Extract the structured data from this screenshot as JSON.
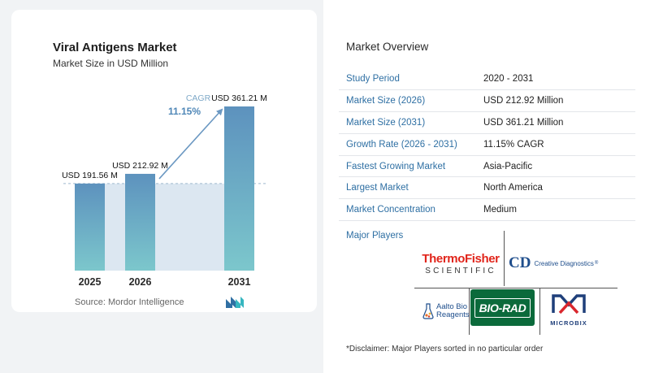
{
  "chart_data": {
    "type": "bar",
    "title": "Viral Antigens Market",
    "subtitle": "Market Size in USD Million",
    "categories": [
      "2025",
      "2026",
      "2031"
    ],
    "values": [
      191.56,
      212.92,
      361.21
    ],
    "value_labels": [
      "USD 191.56 M",
      "USD 212.92 M",
      "USD 361.21 M"
    ],
    "cagr_label": "CAGR",
    "cagr_value": "11.15%",
    "colors": {
      "bar_top": "#5d92be",
      "bar_bottom": "#7cc7cc",
      "band": "#dce7f1",
      "arrow": "#6b98c2",
      "cagr_label": "#7fa9c8",
      "cagr_value": "#4f87b7"
    },
    "grid": false
  },
  "source": "Source:  Mordor Intelligence",
  "brand_logo": "mordor-intelligence-logo",
  "overview": {
    "title": "Market Overview",
    "rows": [
      {
        "label": "Study Period",
        "value": "2020 - 2031"
      },
      {
        "label": "Market Size (2026)",
        "value": "USD 212.92 Million"
      },
      {
        "label": "Market Size (2031)",
        "value": "USD 361.21 Million"
      },
      {
        "label": "Growth Rate (2026 - 2031)",
        "value": "11.15% CAGR"
      },
      {
        "label": "Fastest Growing Market",
        "value": "Asia-Pacific"
      },
      {
        "label": "Largest Market",
        "value": "North America"
      },
      {
        "label": "Market Concentration",
        "value": "Medium"
      }
    ]
  },
  "players": {
    "title": "Major Players",
    "thermo_line1": "ThermoFisher",
    "thermo_line2": "SCIENTIFIC",
    "cd_mark": "CD",
    "cd_name": "Creative Diagnostics",
    "cd_reg": "®",
    "aalto_line1": "Aalto Bio",
    "aalto_line2": "Reagents",
    "biorad": "BIO-RAD",
    "microbix": "MICROBIX"
  },
  "disclaimer": "*Disclaimer: Major Players sorted in no particular order"
}
